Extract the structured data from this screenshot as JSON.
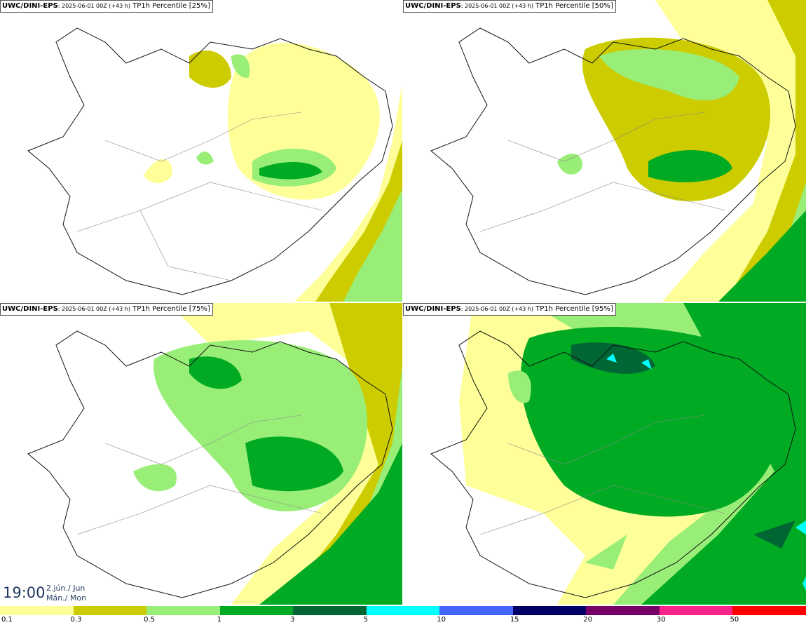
{
  "panels": [
    {
      "source": "UWC/DINI-EPS",
      "run": ": 2025-06-01 00Z (+43 h)",
      "label": "TP1h Percentile [25%]"
    },
    {
      "source": "UWC/DINI-EPS",
      "run": ": 2025-06-01 00Z (+43 h)",
      "label": "TP1h Percentile [50%]"
    },
    {
      "source": "UWC/DINI-EPS",
      "run": ": 2025-06-01 00Z (+43 h)",
      "label": "TP1h Percentile [75%]"
    },
    {
      "source": "UWC/DINI-EPS",
      "run": ": 2025-06-01 00Z (+43 h)",
      "label": "TP1h Percentile [95%]"
    }
  ],
  "valid_time": {
    "time": "19:00",
    "date_line1": "2.jún./ Jun",
    "date_line2": "Mán./ Mon"
  },
  "legend": {
    "labels": [
      "0.1",
      "0.3",
      "0.5",
      "1",
      "3",
      "5",
      "10",
      "15",
      "20",
      "30",
      "50"
    ],
    "colors": [
      "#ffff99",
      "#cccc00",
      "#99ee77",
      "#00aa22",
      "#006633",
      "#00ffff",
      "#4466ff",
      "#000066",
      "#770066",
      "#ff2288",
      "#ff0000"
    ]
  },
  "map_colors": {
    "coast": "#111111",
    "roads": "#888888"
  }
}
